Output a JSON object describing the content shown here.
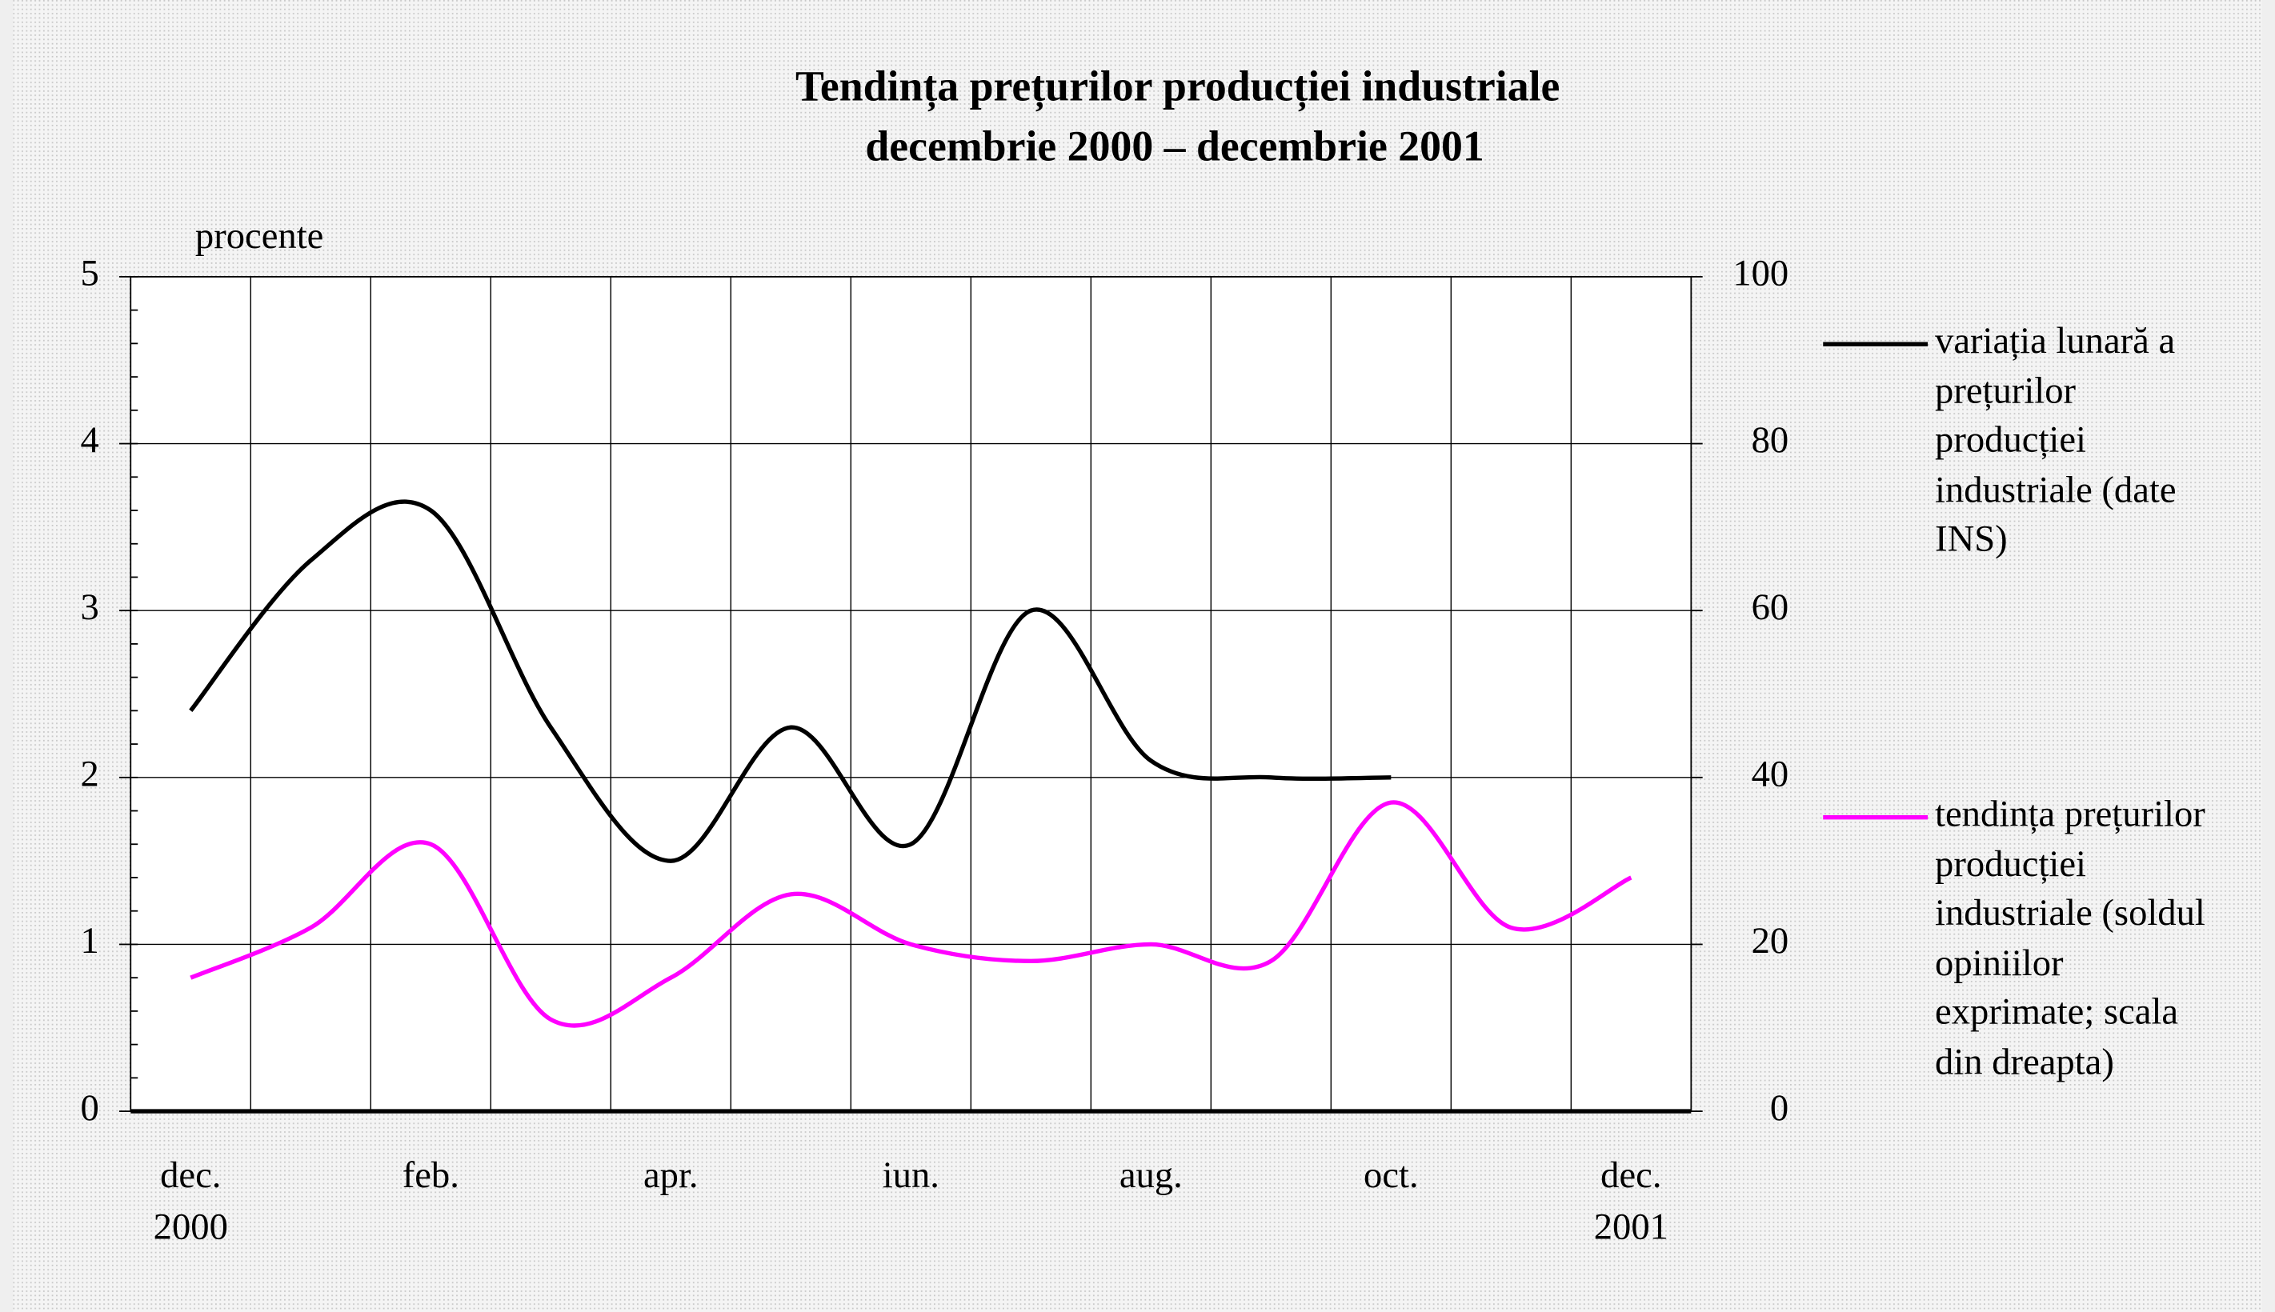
{
  "chart_data": {
    "type": "line",
    "title": "Tendința prețurilor producției industriale",
    "subtitle": "decembrie 2000 – decembrie 2001",
    "y_label": "procente",
    "categories": [
      "dec.",
      null,
      "feb.",
      null,
      "apr.",
      null,
      "iun.",
      null,
      "aug.",
      null,
      "oct.",
      null,
      "dec."
    ],
    "category_years": [
      "2000",
      null,
      null,
      null,
      null,
      null,
      null,
      null,
      null,
      null,
      null,
      null,
      "2001"
    ],
    "series": [
      {
        "name": "variația lunară a prețurilor producției industriale (date INS)",
        "color": "#000000",
        "values": [
          2.4,
          3.3,
          3.6,
          2.3,
          1.5,
          2.3,
          1.6,
          3.0,
          2.1,
          2.0,
          2.0,
          null,
          null
        ]
      },
      {
        "name": "tendința prețurilor producției industriale (soldul opiniilor exprimate; scala din dreapta)",
        "color": "#ff00ff",
        "axis": "y2",
        "values": [
          16,
          22,
          32,
          11,
          16,
          26,
          20,
          18,
          20,
          18,
          37,
          22,
          28
        ]
      }
    ],
    "ylim": [
      0,
      5
    ],
    "yticks": [
      0,
      1,
      2,
      3,
      4,
      5
    ],
    "y2lim": [
      0,
      100
    ],
    "y2ticks": [
      0,
      20,
      40,
      60,
      80,
      100
    ],
    "grid": true
  }
}
